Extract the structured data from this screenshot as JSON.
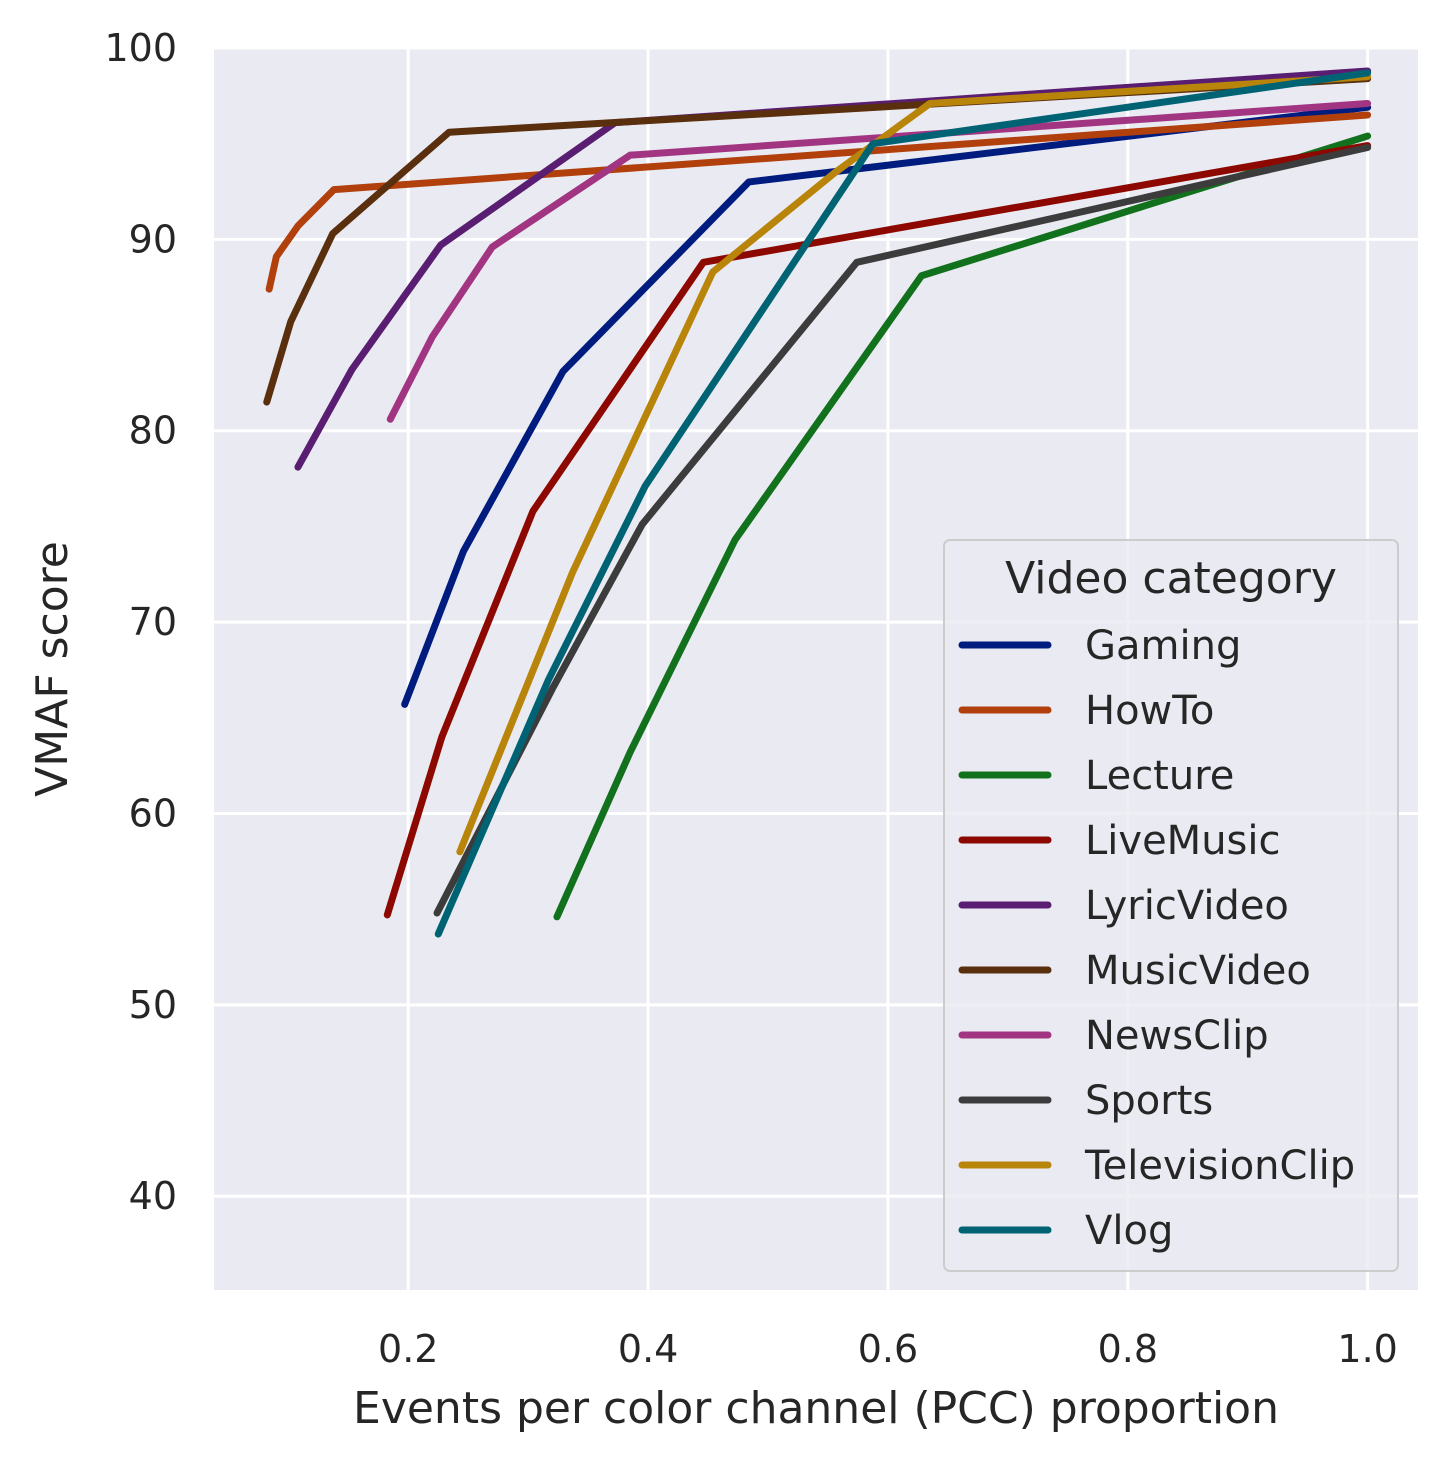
{
  "chart_data": {
    "type": "line",
    "title": "",
    "xlabel": "Events per color channel (PCC) proportion",
    "ylabel": "VMAF score",
    "xlim": [
      0.038,
      1.042
    ],
    "ylim": [
      35.1,
      100
    ],
    "xticks": [
      0.2,
      0.4,
      0.6,
      0.8,
      1.0
    ],
    "xtick_labels": [
      "0.2",
      "0.4",
      "0.6",
      "0.8",
      "1.0"
    ],
    "yticks": [
      40,
      50,
      60,
      70,
      80,
      90,
      100
    ],
    "ytick_labels": [
      "40",
      "50",
      "60",
      "70",
      "80",
      "90",
      "100"
    ],
    "grid": true,
    "legend": {
      "title": "Video category",
      "placement": "bottom-right"
    },
    "series": [
      {
        "name": "Gaming",
        "color": "#001c7f",
        "x": [
          0.197,
          0.246,
          0.329,
          0.484,
          1.0
        ],
        "y": [
          65.7,
          73.7,
          83.1,
          93.0,
          96.9
        ]
      },
      {
        "name": "HowTo",
        "color": "#b1400d",
        "x": [
          0.084,
          0.09,
          0.108,
          0.138,
          1.0
        ],
        "y": [
          87.4,
          89.1,
          90.7,
          92.6,
          96.5
        ]
      },
      {
        "name": "Lecture",
        "color": "#12711c",
        "x": [
          0.324,
          0.385,
          0.4725,
          0.628,
          1.0
        ],
        "y": [
          54.6,
          63.2,
          74.3,
          88.1,
          95.4
        ]
      },
      {
        "name": "LiveMusic",
        "color": "#8c0800",
        "x": [
          0.1825,
          0.228,
          0.304,
          0.446,
          1.0
        ],
        "y": [
          54.7,
          64.0,
          75.8,
          88.8,
          94.9
        ]
      },
      {
        "name": "LyricVideo",
        "color": "#591e71",
        "x": [
          0.108,
          0.153,
          0.227,
          0.3725,
          1.0
        ],
        "y": [
          78.1,
          83.2,
          89.7,
          96.1,
          98.8
        ]
      },
      {
        "name": "MusicVideo",
        "color": "#592f0d",
        "x": [
          0.082,
          0.102,
          0.137,
          0.234,
          1.0
        ],
        "y": [
          81.5,
          85.7,
          90.3,
          95.6,
          98.4
        ]
      },
      {
        "name": "NewsClip",
        "color": "#a23582",
        "x": [
          0.185,
          0.22,
          0.27,
          0.385,
          1.0
        ],
        "y": [
          80.6,
          84.9,
          89.6,
          94.4,
          97.1
        ]
      },
      {
        "name": "Sports",
        "color": "#3c3c3c",
        "x": [
          0.224,
          0.32,
          0.395,
          0.574,
          1.0
        ],
        "y": [
          54.8,
          66.5,
          75.1,
          88.8,
          94.8
        ]
      },
      {
        "name": "TelevisionClip",
        "color": "#b8850a",
        "x": [
          0.243,
          0.337,
          0.454,
          0.556,
          0.635,
          1.0
        ],
        "y": [
          58.0,
          72.6,
          88.3,
          93.5,
          97.1,
          98.5
        ]
      },
      {
        "name": "Vlog",
        "color": "#006374",
        "x": [
          0.225,
          0.317,
          0.3975,
          0.5875,
          1.0
        ],
        "y": [
          53.7,
          67.0,
          77.1,
          95.0,
          98.7
        ]
      }
    ]
  }
}
